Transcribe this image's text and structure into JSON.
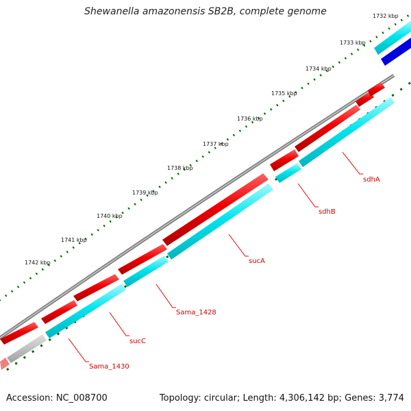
{
  "title": "Shewanella amazonensis SB2B, complete genome",
  "footer": {
    "accession": "Accession: NC_008700",
    "summary": "Topology: circular; Length: 4,306,142 bp; Genes: 3,774"
  },
  "kbp_labels": [
    "1732 kbp",
    "1733 kbp",
    "1734 kbp",
    "1735 kbp",
    "1736 kbp",
    "1737 kbp",
    "1738 kbp",
    "1739 kbp",
    "1740 kbp",
    "1741 kbp",
    "1742 kbp"
  ],
  "genes": [
    "sdhA",
    "sdhB",
    "sucA",
    "Sama_1428",
    "sucC",
    "Sama_1430"
  ],
  "colors": {
    "backbone": "#808080",
    "red": "#ee0000",
    "cyan": "#00e5ee",
    "blue": "#0000dd",
    "grey": "#bbbbbb",
    "pink": "#f08080",
    "tick": "#006400",
    "label": "#d00000"
  }
}
